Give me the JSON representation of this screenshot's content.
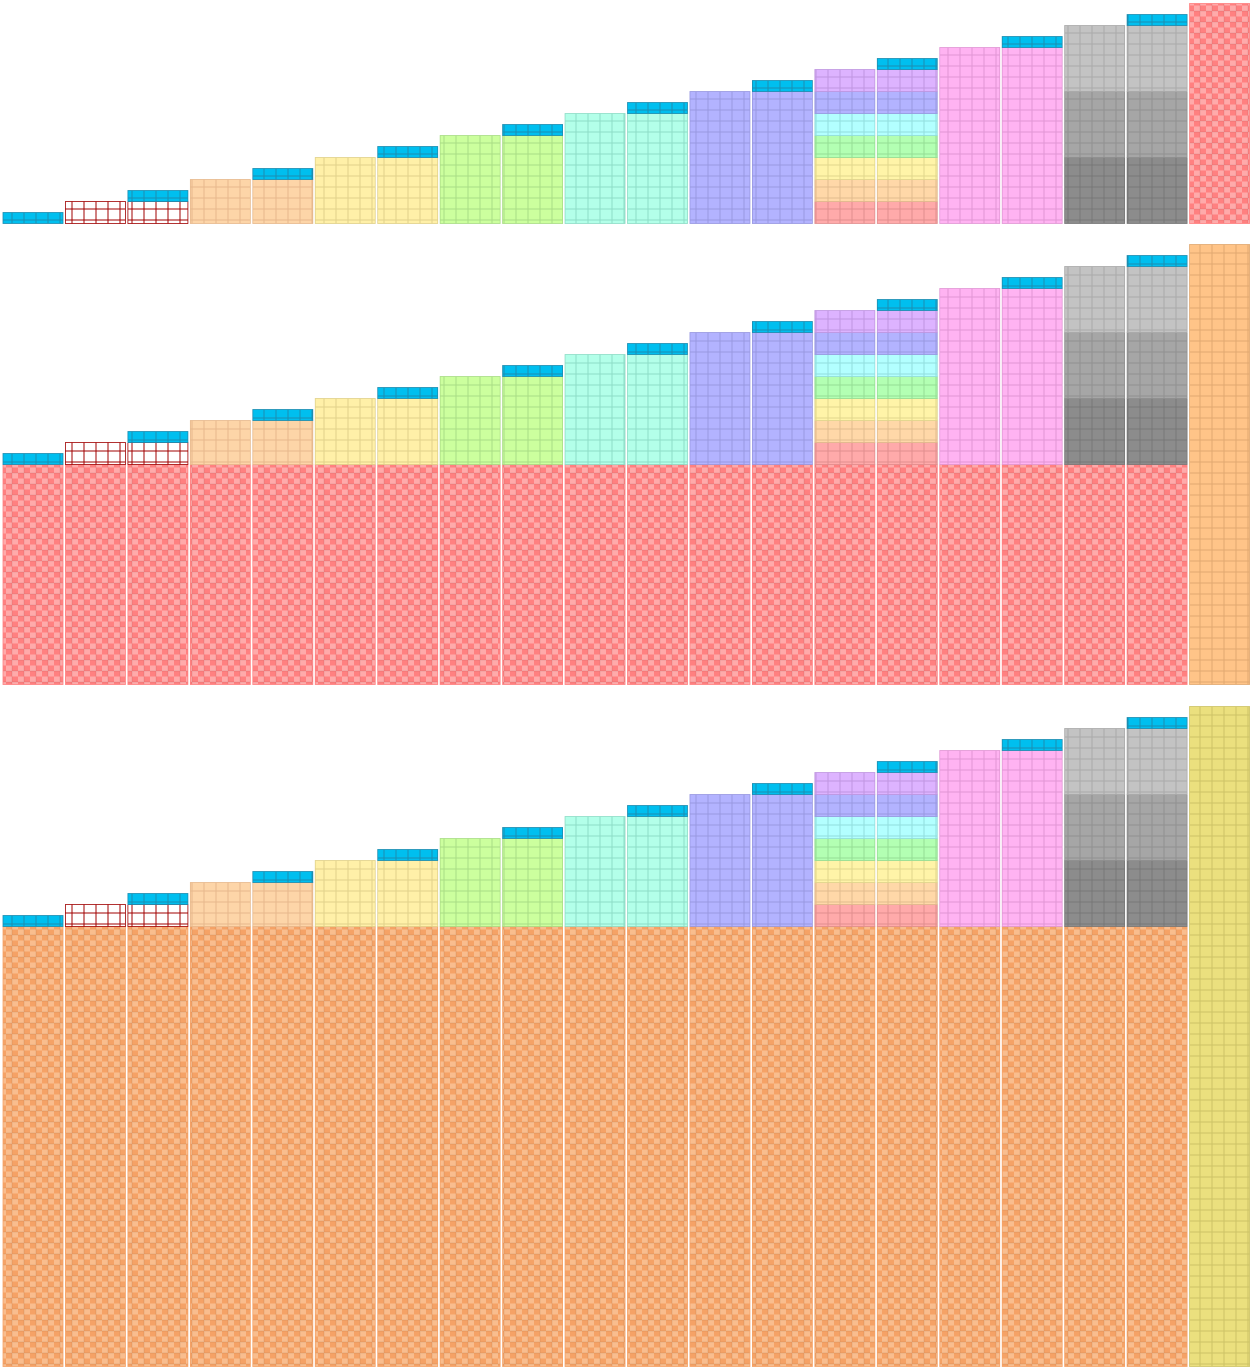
{
  "columns": [
    [
      {
        "fill": "#00bfef",
        "stroke": "#1c8db0",
        "rows": 1
      }
    ],
    [
      {
        "fill": "#ffffff",
        "stroke": "#a00000",
        "rows": 2
      }
    ],
    [
      {
        "fill": "#ffffff",
        "stroke": "#a00000",
        "rows": 2
      },
      {
        "fill": "#00bfef",
        "stroke": "#1c8db0",
        "rows": 1
      }
    ],
    [
      {
        "fill": "#fdd5a8",
        "stroke": "#e6b88c",
        "rows": 4
      }
    ],
    [
      {
        "fill": "#fdd5a8",
        "stroke": "#e6b88c",
        "rows": 4
      },
      {
        "fill": "#00bfef",
        "stroke": "#1c8db0",
        "rows": 1
      }
    ],
    [
      {
        "fill": "#fff0a8",
        "stroke": "#e0d18a",
        "rows": 6
      }
    ],
    [
      {
        "fill": "#fff0a8",
        "stroke": "#e0d18a",
        "rows": 6
      },
      {
        "fill": "#00bfef",
        "stroke": "#1c8db0",
        "rows": 1
      }
    ],
    [
      {
        "fill": "#ccff9e",
        "stroke": "#a9dc85",
        "rows": 8
      }
    ],
    [
      {
        "fill": "#ccff9e",
        "stroke": "#a9dc85",
        "rows": 8
      },
      {
        "fill": "#00bfef",
        "stroke": "#1c8db0",
        "rows": 1
      }
    ],
    [
      {
        "fill": "#b3ffe9",
        "stroke": "#8edcc6",
        "rows": 10
      }
    ],
    [
      {
        "fill": "#b3ffe9",
        "stroke": "#8edcc6",
        "rows": 10
      },
      {
        "fill": "#00bfef",
        "stroke": "#1c8db0",
        "rows": 1
      }
    ],
    [
      {
        "fill": "#b3b3ff",
        "stroke": "#9898e0",
        "rows": 12
      }
    ],
    [
      {
        "fill": "#b3b3ff",
        "stroke": "#9898e0",
        "rows": 12
      },
      {
        "fill": "#00bfef",
        "stroke": "#1c8db0",
        "rows": 1
      }
    ],
    [
      {
        "fill": "#ffaaaa",
        "stroke": "#e08e8e",
        "rows": 2
      },
      {
        "fill": "#ffd8a8",
        "stroke": "#e2bb8e",
        "rows": 2
      },
      {
        "fill": "#fff4a8",
        "stroke": "#e0d68c",
        "rows": 2
      },
      {
        "fill": "#b3ffb3",
        "stroke": "#94de94",
        "rows": 2
      },
      {
        "fill": "#b3ffff",
        "stroke": "#92dede",
        "rows": 2
      },
      {
        "fill": "#b3b3ff",
        "stroke": "#9898e0",
        "rows": 2
      },
      {
        "fill": "#ddb3ff",
        "stroke": "#c096e0",
        "rows": 2
      }
    ],
    [
      {
        "fill": "#ffaaaa",
        "stroke": "#e08e8e",
        "rows": 2
      },
      {
        "fill": "#ffd8a8",
        "stroke": "#e2bb8e",
        "rows": 2
      },
      {
        "fill": "#fff4a8",
        "stroke": "#e0d68c",
        "rows": 2
      },
      {
        "fill": "#b3ffb3",
        "stroke": "#94de94",
        "rows": 2
      },
      {
        "fill": "#b3ffff",
        "stroke": "#92dede",
        "rows": 2
      },
      {
        "fill": "#b3b3ff",
        "stroke": "#9898e0",
        "rows": 2
      },
      {
        "fill": "#ddb3ff",
        "stroke": "#c096e0",
        "rows": 2
      },
      {
        "fill": "#00bfef",
        "stroke": "#1c8db0",
        "rows": 1
      }
    ],
    [
      {
        "fill": "#ffb3f2",
        "stroke": "#e096d4",
        "rows": 16
      }
    ],
    [
      {
        "fill": "#ffb3f2",
        "stroke": "#e096d4",
        "rows": 16
      },
      {
        "fill": "#00bfef",
        "stroke": "#1c8db0",
        "rows": 1
      }
    ],
    [
      {
        "fill": "#8c8c8c",
        "stroke": "#777777",
        "rows": 6
      },
      {
        "fill": "#a6a6a6",
        "stroke": "#909090",
        "rows": 6
      },
      {
        "fill": "#c3c3c3",
        "stroke": "#aaaaaa",
        "rows": 6
      }
    ],
    [
      {
        "fill": "#8c8c8c",
        "stroke": "#777777",
        "rows": 6
      },
      {
        "fill": "#a6a6a6",
        "stroke": "#909090",
        "rows": 6
      },
      {
        "fill": "#c3c3c3",
        "stroke": "#aaaaaa",
        "rows": 6
      },
      {
        "fill": "#00bfef",
        "stroke": "#1c8db0",
        "rows": 1
      }
    ]
  ],
  "rows": [
    {
      "last": [
        {
          "fill": "#ff8080",
          "alt": "#ffaaaa",
          "rows": 20
        }
      ]
    },
    {
      "base": {
        "fill": "#ff8080",
        "alt": "#ffaaaa",
        "rows": 20
      },
      "last": [
        {
          "fill": "#ffc488",
          "stroke": "#e0a870",
          "rows": 40
        }
      ]
    },
    {
      "base": {
        "fill": "#f5a266",
        "alt": "#f9bd8e",
        "rows": 40
      },
      "last": [
        {
          "fill": "#ebe07e",
          "stroke": "#cdc266",
          "rows": 60
        }
      ]
    }
  ]
}
